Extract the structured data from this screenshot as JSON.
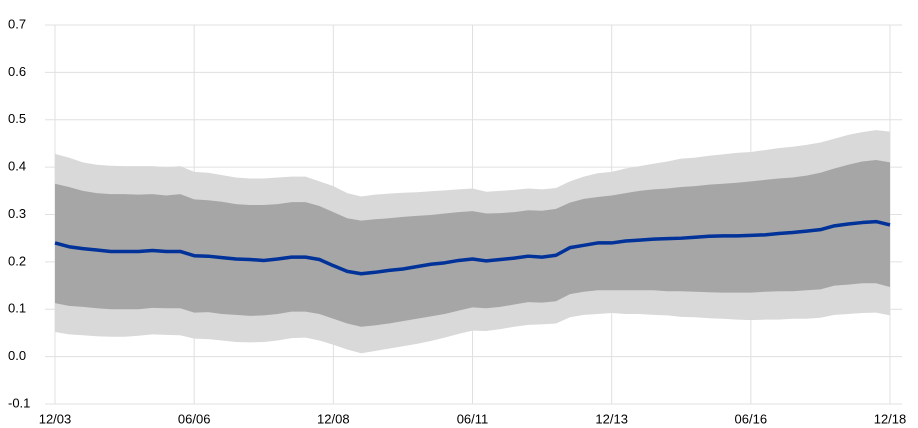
{
  "chart_data": {
    "type": "fan",
    "categories": [
      "12/03",
      null,
      null,
      null,
      null,
      null,
      null,
      null,
      null,
      null,
      "06/06",
      null,
      null,
      null,
      null,
      null,
      null,
      null,
      null,
      null,
      "12/08",
      null,
      null,
      null,
      null,
      null,
      null,
      null,
      null,
      null,
      "06/11",
      null,
      null,
      null,
      null,
      null,
      null,
      null,
      null,
      null,
      "12/13",
      null,
      null,
      null,
      null,
      null,
      null,
      null,
      null,
      null,
      "06/16",
      null,
      null,
      null,
      null,
      null,
      null,
      null,
      null,
      null,
      "12/18"
    ],
    "ylim": [
      -0.1,
      0.7
    ],
    "yticks": [
      -0.1,
      {
        "value": 0,
        "label": "0.0"
      },
      0.1,
      0.2,
      0.3,
      0.4,
      0.5,
      0.6,
      0.7
    ],
    "grid": true,
    "bands": [
      {
        "color": "#d9d9d9",
        "upper": [
          0.428,
          0.42,
          0.41,
          0.405,
          0.403,
          0.402,
          0.402,
          0.402,
          0.4,
          0.402,
          0.39,
          0.388,
          0.383,
          0.378,
          0.376,
          0.376,
          0.378,
          0.38,
          0.38,
          0.37,
          0.36,
          0.345,
          0.338,
          0.342,
          0.344,
          0.346,
          0.347,
          0.349,
          0.351,
          0.353,
          0.355,
          0.348,
          0.35,
          0.352,
          0.355,
          0.353,
          0.356,
          0.37,
          0.38,
          0.387,
          0.39,
          0.397,
          0.402,
          0.407,
          0.412,
          0.418,
          0.42,
          0.424,
          0.427,
          0.43,
          0.432,
          0.436,
          0.44,
          0.443,
          0.447,
          0.452,
          0.46,
          0.468,
          0.474,
          0.478,
          0.475
        ],
        "lower": [
          0.052,
          0.047,
          0.045,
          0.043,
          0.042,
          0.042,
          0.044,
          0.047,
          0.046,
          0.045,
          0.038,
          0.037,
          0.034,
          0.031,
          0.03,
          0.031,
          0.034,
          0.039,
          0.04,
          0.034,
          0.025,
          0.015,
          0.007,
          0.012,
          0.017,
          0.022,
          0.027,
          0.033,
          0.04,
          0.048,
          0.055,
          0.054,
          0.058,
          0.063,
          0.067,
          0.068,
          0.07,
          0.083,
          0.088,
          0.09,
          0.092,
          0.09,
          0.09,
          0.088,
          0.087,
          0.084,
          0.083,
          0.081,
          0.08,
          0.078,
          0.077,
          0.078,
          0.078,
          0.08,
          0.08,
          0.082,
          0.088,
          0.09,
          0.092,
          0.093,
          0.087
        ]
      },
      {
        "color": "#a6a6a6",
        "upper": [
          0.365,
          0.358,
          0.35,
          0.345,
          0.343,
          0.343,
          0.342,
          0.343,
          0.34,
          0.343,
          0.332,
          0.33,
          0.327,
          0.322,
          0.32,
          0.32,
          0.322,
          0.326,
          0.326,
          0.318,
          0.305,
          0.292,
          0.287,
          0.29,
          0.292,
          0.295,
          0.297,
          0.299,
          0.302,
          0.305,
          0.307,
          0.302,
          0.303,
          0.305,
          0.309,
          0.308,
          0.312,
          0.325,
          0.333,
          0.337,
          0.34,
          0.345,
          0.35,
          0.353,
          0.355,
          0.358,
          0.36,
          0.363,
          0.365,
          0.367,
          0.37,
          0.373,
          0.376,
          0.378,
          0.382,
          0.388,
          0.397,
          0.405,
          0.412,
          0.415,
          0.41
        ],
        "lower": [
          0.113,
          0.107,
          0.105,
          0.102,
          0.1,
          0.1,
          0.1,
          0.103,
          0.102,
          0.102,
          0.093,
          0.094,
          0.09,
          0.088,
          0.086,
          0.087,
          0.09,
          0.095,
          0.095,
          0.09,
          0.08,
          0.07,
          0.063,
          0.066,
          0.07,
          0.075,
          0.08,
          0.085,
          0.09,
          0.097,
          0.104,
          0.102,
          0.105,
          0.11,
          0.115,
          0.114,
          0.117,
          0.132,
          0.137,
          0.14,
          0.14,
          0.14,
          0.14,
          0.14,
          0.138,
          0.138,
          0.137,
          0.136,
          0.135,
          0.135,
          0.135,
          0.137,
          0.138,
          0.138,
          0.14,
          0.142,
          0.15,
          0.152,
          0.155,
          0.155,
          0.147
        ]
      }
    ],
    "series": [
      {
        "color": "#003299",
        "values": [
          0.24,
          0.232,
          0.228,
          0.225,
          0.222,
          0.222,
          0.222,
          0.224,
          0.222,
          0.222,
          0.213,
          0.212,
          0.209,
          0.206,
          0.205,
          0.203,
          0.206,
          0.21,
          0.21,
          0.205,
          0.192,
          0.18,
          0.175,
          0.178,
          0.182,
          0.185,
          0.19,
          0.195,
          0.198,
          0.203,
          0.206,
          0.202,
          0.205,
          0.208,
          0.212,
          0.21,
          0.214,
          0.23,
          0.235,
          0.24,
          0.24,
          0.244,
          0.246,
          0.248,
          0.249,
          0.25,
          0.252,
          0.254,
          0.255,
          0.255,
          0.256,
          0.257,
          0.26,
          0.262,
          0.265,
          0.268,
          0.276,
          0.28,
          0.283,
          0.285,
          0.278
        ]
      }
    ]
  }
}
